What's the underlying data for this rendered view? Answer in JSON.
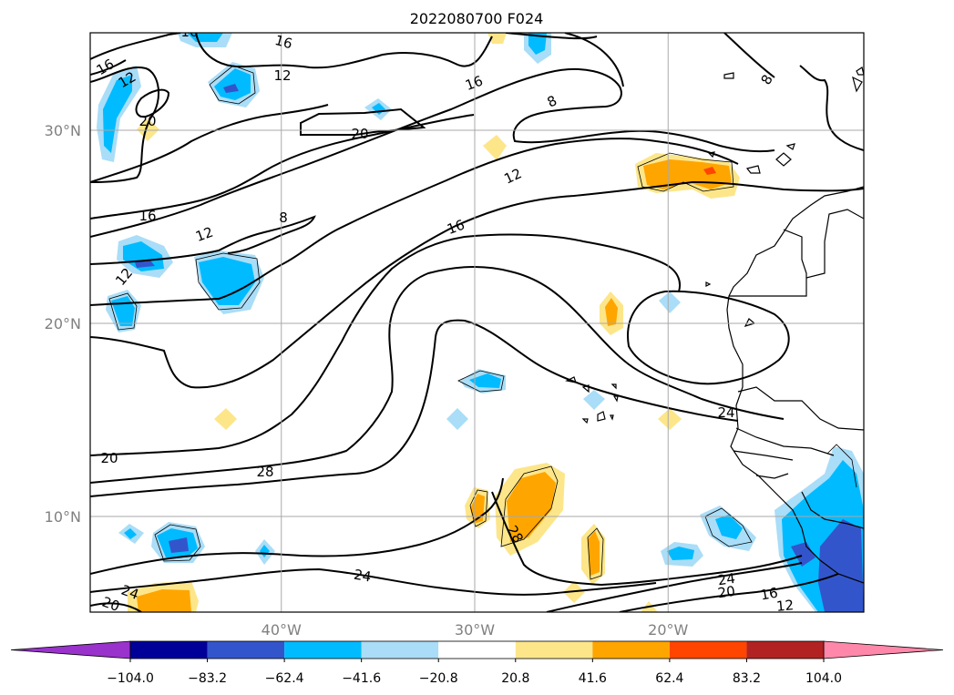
{
  "chart_data": {
    "type": "contour",
    "title": "2022080700 F024",
    "projection": "map",
    "lon_ticks": [
      {
        "value": -40,
        "label": "40°W"
      },
      {
        "value": -30,
        "label": "30°W"
      },
      {
        "value": -20,
        "label": "20°W"
      }
    ],
    "lat_ticks": [
      {
        "value": 30,
        "label": "30°N"
      },
      {
        "value": 20,
        "label": "20°N"
      },
      {
        "value": 10,
        "label": "10°N"
      }
    ],
    "lon_range": [
      -50,
      -10
    ],
    "lat_range": [
      5,
      35
    ],
    "grid": true,
    "contour_labels": [
      "16",
      "12",
      "16",
      "12",
      "16",
      "20",
      "20",
      "8",
      "12",
      "16",
      "8",
      "16",
      "12",
      "12",
      "8",
      "16",
      "20",
      "28",
      "24",
      "24",
      "24",
      "20",
      "16",
      "12",
      "24",
      "20",
      "28"
    ],
    "colorbar": {
      "orientation": "horizontal",
      "extend": "both",
      "levels": [
        -124.8,
        -104.0,
        -83.2,
        -62.4,
        -41.6,
        -20.8,
        20.8,
        41.6,
        62.4,
        83.2,
        104.0,
        124.8
      ],
      "tick_labels": [
        "−104.0",
        "−83.2",
        "−62.4",
        "−41.6",
        "−20.8",
        "20.8",
        "41.6",
        "62.4",
        "83.2",
        "104.0"
      ],
      "colors": [
        "#9933cc",
        "#000099",
        "#3355cc",
        "#00bbff",
        "#aaddf7",
        "#ffffff",
        "#fde68a",
        "#ffa500",
        "#ff4500",
        "#b22222",
        "#ff88aa",
        "#ff88aa"
      ]
    }
  }
}
